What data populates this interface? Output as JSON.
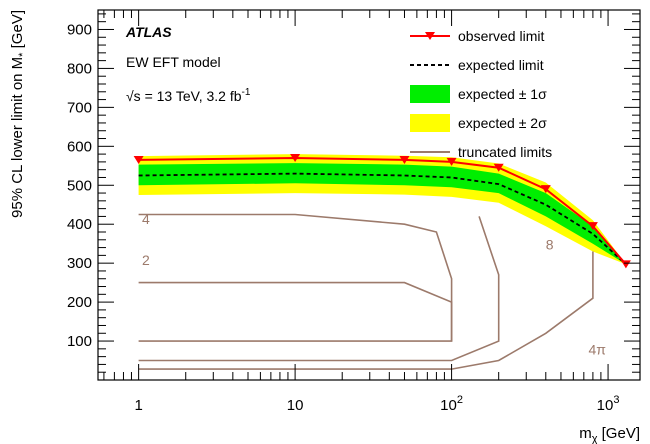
{
  "chart_data": {
    "type": "line",
    "xlabel": "m",
    "xlabel_sub": "χ",
    "xlabel_unit": " [GeV]",
    "ylabel": "95% CL lower limit on M",
    "ylabel_sub": "*",
    "ylabel_unit": " [GeV]",
    "x_scale": "log",
    "xlim": [
      0.55,
      1600
    ],
    "ylim": [
      0,
      950
    ],
    "x_ticks": [
      {
        "value": 1,
        "label": "1"
      },
      {
        "value": 10,
        "label": "10"
      },
      {
        "value": 100,
        "label": "10",
        "sup": "2"
      },
      {
        "value": 1000,
        "label": "10",
        "sup": "3"
      }
    ],
    "y_ticks": [
      {
        "value": 100,
        "label": "100"
      },
      {
        "value": 200,
        "label": "200"
      },
      {
        "value": 300,
        "label": "300"
      },
      {
        "value": 400,
        "label": "400"
      },
      {
        "value": 500,
        "label": "500"
      },
      {
        "value": 600,
        "label": "600"
      },
      {
        "value": 700,
        "label": "700"
      },
      {
        "value": 800,
        "label": "800"
      },
      {
        "value": 900,
        "label": "900"
      }
    ],
    "annotations": {
      "experiment": "ATLAS",
      "model": "EW EFT model",
      "energy_sqrt": "√s",
      "energy_rest": " = 13 TeV, 3.2 fb",
      "energy_sup": "-1"
    },
    "legend": {
      "placement": "top-right",
      "observed": "observed limit",
      "expected": "expected limit",
      "band1": "expected ± 1σ",
      "band2": "expected ± 2σ",
      "truncated": "truncated limits"
    },
    "colors": {
      "observed": "#ff0000",
      "expected": "#000000",
      "band1": "#00ee00",
      "band2": "#ffff00",
      "truncated": "#9c7a6b"
    },
    "x": [
      1,
      10,
      50,
      100,
      200,
      400,
      800,
      1300
    ],
    "observed": [
      565,
      570,
      565,
      560,
      545,
      490,
      395,
      297
    ],
    "expected": [
      525,
      530,
      525,
      520,
      503,
      450,
      375,
      297
    ],
    "band1_low": [
      500,
      505,
      500,
      495,
      480,
      420,
      350,
      297
    ],
    "band1_high": [
      553,
      557,
      553,
      548,
      530,
      480,
      395,
      297
    ],
    "band2_low": [
      475,
      480,
      476,
      470,
      455,
      395,
      330,
      297
    ],
    "band2_high": [
      575,
      580,
      576,
      572,
      556,
      507,
      410,
      297
    ],
    "truncated": [
      {
        "label": "4",
        "label_at": [
          1.05,
          400
        ],
        "points": [
          [
            1,
            425
          ],
          [
            10,
            425
          ],
          [
            50,
            400
          ],
          [
            80,
            380
          ],
          [
            100,
            260
          ],
          [
            100,
            100
          ],
          [
            1,
            100
          ]
        ]
      },
      {
        "label": "2",
        "label_at": [
          1.05,
          295
        ],
        "points": [
          [
            1,
            250
          ],
          [
            50,
            250
          ],
          [
            100,
            200
          ],
          [
            100,
            100
          ]
        ]
      },
      {
        "label": "8",
        "label_at": [
          400,
          335
        ],
        "points": [
          [
            1,
            50
          ],
          [
            100,
            50
          ],
          [
            200,
            100
          ],
          [
            200,
            270
          ],
          [
            150,
            420
          ]
        ]
      },
      {
        "label": "4π",
        "label_at": [
          750,
          65
        ],
        "points": [
          [
            1,
            28
          ],
          [
            100,
            28
          ],
          [
            200,
            50
          ],
          [
            400,
            120
          ],
          [
            800,
            210
          ],
          [
            800,
            330
          ]
        ]
      }
    ]
  }
}
